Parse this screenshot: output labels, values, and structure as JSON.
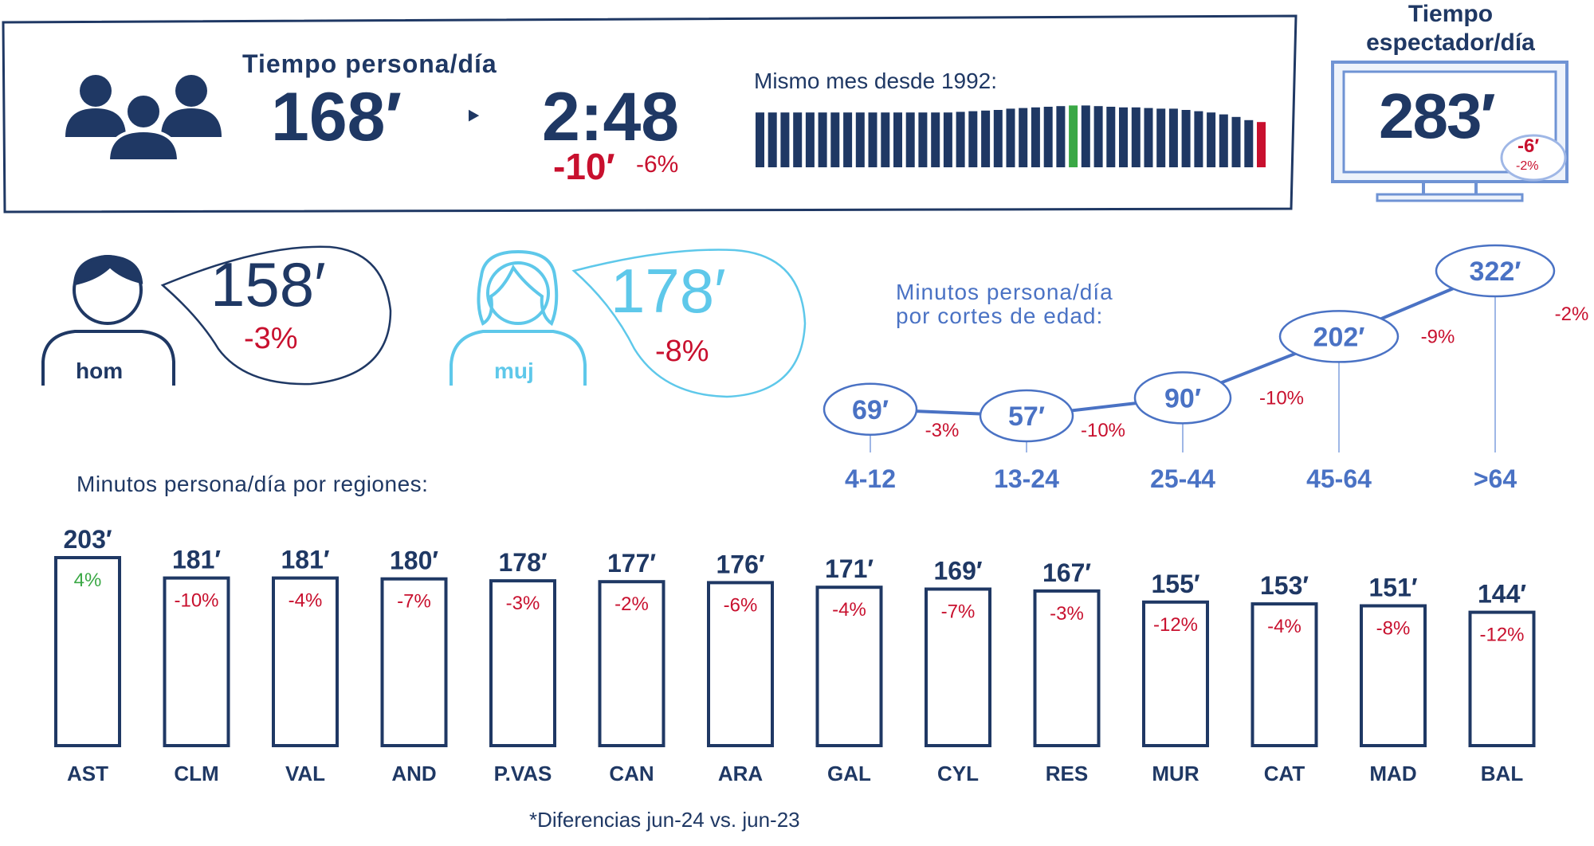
{
  "colors": {
    "navy": "#1f3864",
    "red": "#c8102e",
    "green": "#3aa845",
    "blue": "#4a72c4",
    "cyan": "#5ec8ea"
  },
  "header": {
    "title": "Tiempo persona/día",
    "minutes": "168′",
    "arrow": "‣",
    "hours": "2:48",
    "diff_min": "-10′",
    "diff_pct": "-6%",
    "icon": "group-people-icon"
  },
  "history": {
    "label": "Mismo mes desde 1992:",
    "values": [
      86,
      86,
      86,
      86,
      86,
      86,
      86,
      86,
      86,
      86,
      86,
      86,
      86,
      86,
      86,
      86,
      87,
      88,
      89,
      90,
      92,
      93,
      94,
      95,
      96,
      97,
      97,
      96,
      95,
      94,
      94,
      93,
      92,
      92,
      90,
      88,
      86,
      83,
      79,
      74,
      71
    ]
  },
  "viewer": {
    "title_line1": "Tiempo",
    "title_line2": "espectador/día",
    "value": "283′",
    "diff_min": "-6′",
    "diff_pct": "-2%",
    "icon": "tv-monitor-icon"
  },
  "gender": {
    "men": {
      "label": "hom",
      "value": "158′",
      "diff": "-3%",
      "icon": "man-icon"
    },
    "women": {
      "label": "muj",
      "value": "178′",
      "diff": "-8%",
      "icon": "woman-icon"
    }
  },
  "age_chart": {
    "title_line1": "Minutos persona/día",
    "title_line2": "por cortes de edad:"
  },
  "region_chart": {
    "title": "Minutos persona/día por regiones:",
    "footnote": "*Diferencias jun-24 vs. jun-23"
  },
  "chart_data": [
    {
      "type": "line",
      "title": "Minutos persona/día por cortes de edad:",
      "categories": [
        "4-12",
        "13-24",
        "25-44",
        "45-64",
        ">64"
      ],
      "values": [
        69,
        57,
        90,
        202,
        322
      ],
      "value_labels": [
        "69′",
        "57′",
        "90′",
        "202′",
        "322′"
      ],
      "diffs": [
        "-3%",
        "-10%",
        "-10%",
        "-9%",
        "-2%"
      ],
      "ylim": [
        0,
        340
      ]
    },
    {
      "type": "bar",
      "title": "Minutos persona/día por regiones:",
      "categories": [
        "AST",
        "CLM",
        "VAL",
        "AND",
        "P.VAS",
        "CAN",
        "ARA",
        "GAL",
        "CYL",
        "RES",
        "MUR",
        "CAT",
        "MAD",
        "BAL"
      ],
      "values": [
        203,
        181,
        181,
        180,
        178,
        177,
        176,
        171,
        169,
        167,
        155,
        153,
        151,
        144
      ],
      "value_labels": [
        "203′",
        "181′",
        "181′",
        "180′",
        "178′",
        "177′",
        "176′",
        "171′",
        "169′",
        "167′",
        "155′",
        "153′",
        "151′",
        "144′"
      ],
      "diffs": [
        "4%",
        "-10%",
        "-4%",
        "-7%",
        "-3%",
        "-2%",
        "-6%",
        "-4%",
        "-7%",
        "-3%",
        "-12%",
        "-4%",
        "-8%",
        "-12%"
      ],
      "ylim": [
        0,
        203
      ]
    }
  ]
}
